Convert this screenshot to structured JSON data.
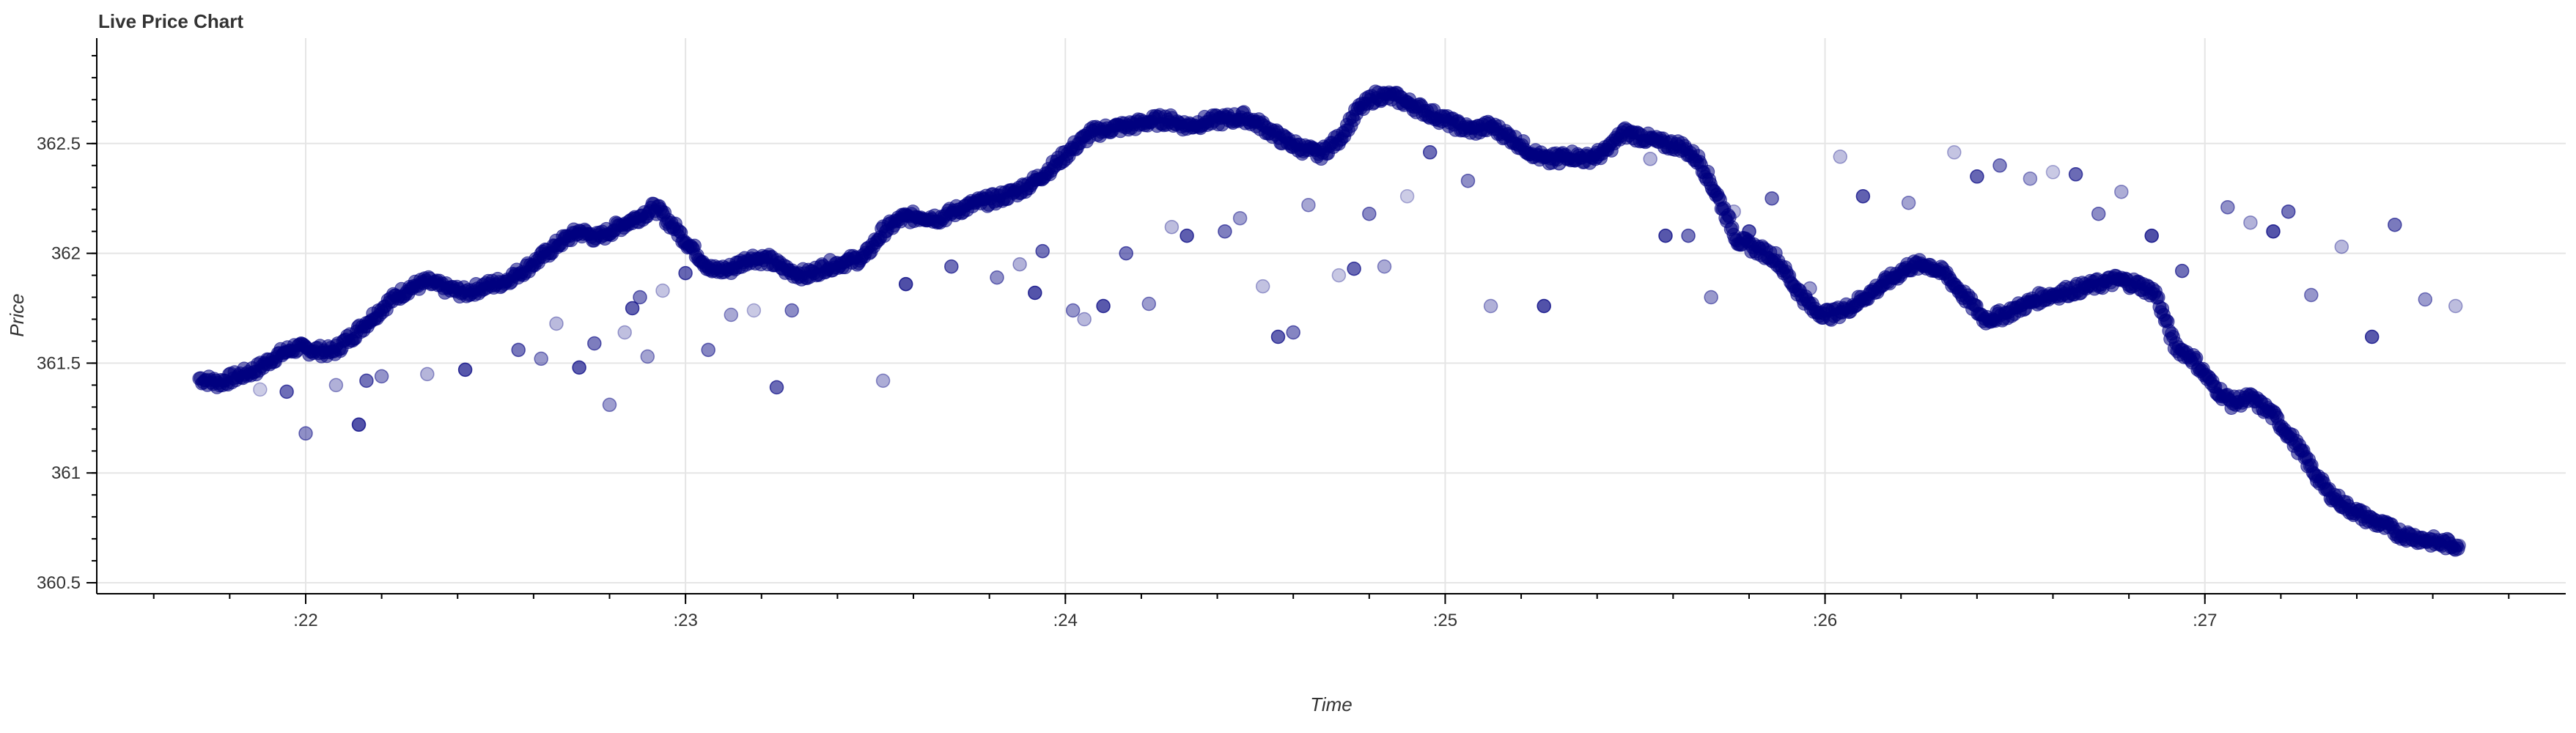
{
  "chart_data": {
    "type": "scatter",
    "title": "Live Price Chart",
    "xlabel": "Time",
    "ylabel": "Price",
    "xlim": [
      21.45,
      27.95
    ],
    "ylim": [
      360.45,
      362.98
    ],
    "x_ticks": [
      {
        "value": 22,
        "label": ":22"
      },
      {
        "value": 23,
        "label": ":23"
      },
      {
        "value": 24,
        "label": ":24"
      },
      {
        "value": 25,
        "label": ":25"
      },
      {
        "value": 26,
        "label": ":26"
      },
      {
        "value": 27,
        "label": ":27"
      }
    ],
    "y_ticks": [
      {
        "value": 360.5,
        "label": "360.5"
      },
      {
        "value": 361,
        "label": "361"
      },
      {
        "value": 361.5,
        "label": "361.5"
      },
      {
        "value": 362,
        "label": "362"
      },
      {
        "value": 362.5,
        "label": "362.5"
      }
    ],
    "grid": true,
    "marker_color": "#000080",
    "series": [
      {
        "name": "",
        "x": [
          21.72,
          21.77,
          21.82,
          21.87,
          21.92,
          21.97,
          22.02,
          22.07,
          22.12,
          22.17,
          22.22,
          22.27,
          22.32,
          22.37,
          22.42,
          22.47,
          22.52,
          22.57,
          22.62,
          22.67,
          22.72,
          22.77,
          22.82,
          22.87,
          22.92,
          22.97,
          23.02,
          23.07,
          23.12,
          23.17,
          23.22,
          23.27,
          23.32,
          23.37,
          23.42,
          23.47,
          23.52,
          23.57,
          23.62,
          23.67,
          23.72,
          23.77,
          23.82,
          23.87,
          23.92,
          23.97,
          24.02,
          24.07,
          24.12,
          24.17,
          24.22,
          24.27,
          24.32,
          24.37,
          24.42,
          24.47,
          24.52,
          24.57,
          24.62,
          24.67,
          24.72,
          24.77,
          24.82,
          24.87,
          24.92,
          24.97,
          25.02,
          25.07,
          25.12,
          25.17,
          25.22,
          25.27,
          25.32,
          25.37,
          25.42,
          25.47,
          25.52,
          25.57,
          25.62,
          25.67,
          25.72,
          25.77,
          25.82,
          25.87,
          25.92,
          25.97,
          26.02,
          26.07,
          26.12,
          26.17,
          26.22,
          26.27,
          26.32,
          26.37,
          26.42,
          26.47,
          26.52,
          26.57,
          26.62,
          26.67,
          26.72,
          26.77,
          26.82,
          26.87,
          26.92,
          26.97,
          27.02,
          27.07,
          27.12,
          27.17,
          27.22,
          27.27,
          27.32,
          27.37,
          27.42,
          27.47,
          27.52,
          27.57,
          27.62,
          27.67
        ],
        "y": [
          361.43,
          361.41,
          361.44,
          361.47,
          361.53,
          361.57,
          361.56,
          361.55,
          361.62,
          361.7,
          361.78,
          361.84,
          361.87,
          361.84,
          361.82,
          361.85,
          361.87,
          361.92,
          361.98,
          362.05,
          362.1,
          362.07,
          362.12,
          362.16,
          362.21,
          362.12,
          362.02,
          361.92,
          361.93,
          361.98,
          361.97,
          361.92,
          361.9,
          361.94,
          361.96,
          361.98,
          362.1,
          362.16,
          362.17,
          362.16,
          362.2,
          362.23,
          362.25,
          362.28,
          362.33,
          362.4,
          362.48,
          362.55,
          362.57,
          362.58,
          362.6,
          362.61,
          362.58,
          362.6,
          362.61,
          362.62,
          362.58,
          362.52,
          362.48,
          362.45,
          362.52,
          362.65,
          362.72,
          362.71,
          362.67,
          362.63,
          362.59,
          362.56,
          362.58,
          362.53,
          362.47,
          362.42,
          362.45,
          362.43,
          362.46,
          362.55,
          362.53,
          362.5,
          362.49,
          362.42,
          362.25,
          362.06,
          362.02,
          361.98,
          361.85,
          361.74,
          361.72,
          361.76,
          361.82,
          361.88,
          361.94,
          361.95,
          361.9,
          361.8,
          361.7,
          361.72,
          361.76,
          361.8,
          361.82,
          361.84,
          361.86,
          361.88,
          361.86,
          361.82,
          361.58,
          361.52,
          361.4,
          361.32,
          361.34,
          361.28,
          361.18,
          361.05,
          360.92,
          360.85,
          360.8,
          360.76,
          360.72,
          360.7,
          360.68,
          360.67
        ]
      },
      {
        "name": "",
        "x": [
          21.88,
          21.95,
          22.0,
          22.08,
          22.14,
          22.16,
          22.2,
          22.32,
          22.42,
          22.56,
          22.62,
          22.66,
          22.72,
          22.76,
          22.8,
          22.84,
          22.86,
          22.88,
          22.9,
          22.94,
          23.0,
          23.06,
          23.12,
          23.18,
          23.24,
          23.28,
          23.52,
          23.58,
          23.7,
          23.82,
          23.88,
          23.92,
          23.94,
          24.02,
          24.05,
          24.1,
          24.16,
          24.22,
          24.28,
          24.32,
          24.42,
          24.46,
          24.52,
          24.56,
          24.6,
          24.64,
          24.72,
          24.76,
          24.8,
          24.84,
          24.9,
          24.96,
          25.06,
          25.12,
          25.26,
          25.3,
          25.4,
          25.54,
          25.58,
          25.64,
          25.7,
          25.76,
          25.8,
          25.86,
          25.96,
          26.04,
          26.1,
          26.16,
          26.22,
          26.34,
          26.4,
          26.46,
          26.54,
          26.6,
          26.66,
          26.72,
          26.78,
          26.86,
          26.94,
          27.06,
          27.12,
          27.18,
          27.22,
          27.28,
          27.36,
          27.44,
          27.5,
          27.58,
          27.66
        ],
        "y": [
          361.38,
          361.37,
          361.18,
          361.4,
          361.22,
          361.42,
          361.44,
          361.45,
          361.47,
          361.56,
          361.52,
          361.68,
          361.48,
          361.59,
          361.31,
          361.64,
          361.75,
          361.8,
          361.53,
          361.83,
          361.91,
          361.56,
          361.72,
          361.74,
          361.39,
          361.74,
          361.42,
          361.86,
          361.94,
          361.89,
          361.95,
          361.82,
          362.01,
          361.74,
          361.7,
          361.76,
          362.0,
          361.77,
          362.12,
          362.08,
          362.1,
          362.16,
          361.85,
          361.62,
          361.64,
          362.22,
          361.9,
          361.93,
          362.18,
          361.94,
          362.26,
          362.46,
          362.33,
          361.76,
          361.76,
          362.41,
          362.44,
          362.43,
          362.08,
          362.08,
          361.8,
          362.19,
          362.1,
          362.25,
          361.84,
          362.44,
          362.26,
          361.87,
          362.23,
          362.46,
          362.35,
          362.4,
          362.34,
          362.37,
          362.36,
          362.18,
          362.28,
          362.08,
          361.92,
          362.21,
          362.14,
          362.1,
          362.19,
          361.81,
          362.03,
          361.62,
          362.13,
          361.79,
          361.76
        ]
      }
    ]
  }
}
